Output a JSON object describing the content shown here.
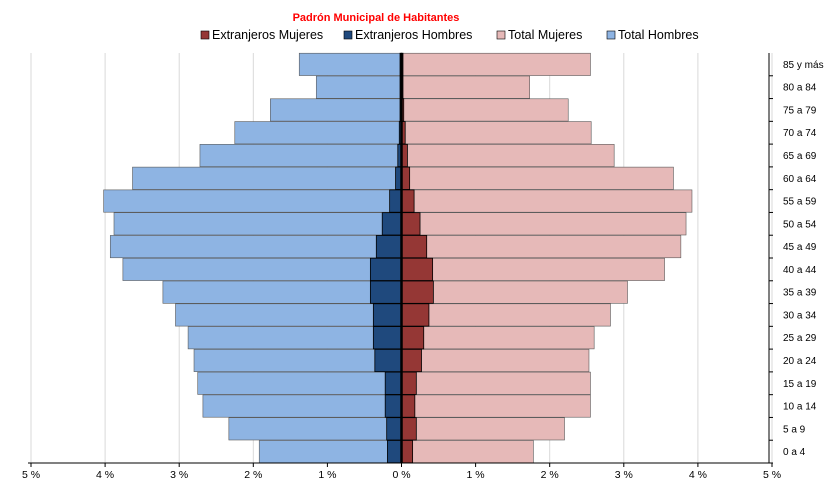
{
  "chart_data": {
    "type": "bar",
    "orientation": "horizontal",
    "title": "Padrón Municipal  de Habitantes",
    "legend_position": "top",
    "grid": true,
    "xlim": [
      -5,
      5
    ],
    "x_ticks": [
      "5 %",
      "4 %",
      "3 %",
      "2 %",
      "1 %",
      "0 %",
      "1 %",
      "2 %",
      "3 %",
      "4 %",
      "5 %"
    ],
    "categories": [
      "0 a 4",
      "5 a 9",
      "10 a 14",
      "15 a 19",
      "20 a 24",
      "25 a 29",
      "30 a 34",
      "35 a 39",
      "40 a 44",
      "45 a 49",
      "50 a 54",
      "55 a 59",
      "60 a 64",
      "65 a 69",
      "70 a 74",
      "75 a 79",
      "80 a 84",
      "85 y más"
    ],
    "series": [
      {
        "name": "Extranjeros Mujeres",
        "color": "#953735",
        "side": "right",
        "values": [
          0.15,
          0.2,
          0.18,
          0.2,
          0.27,
          0.3,
          0.37,
          0.43,
          0.42,
          0.34,
          0.25,
          0.17,
          0.11,
          0.08,
          0.05,
          0.03,
          0.02,
          0.02
        ]
      },
      {
        "name": "Extranjeros Hombres",
        "color": "#1f497d",
        "side": "left",
        "values": [
          0.19,
          0.2,
          0.22,
          0.22,
          0.36,
          0.38,
          0.38,
          0.42,
          0.42,
          0.34,
          0.26,
          0.16,
          0.08,
          0.05,
          0.03,
          0.02,
          0.02,
          0.02
        ]
      },
      {
        "name": "Total Mujeres",
        "color": "#e6b9b8",
        "side": "right",
        "values": [
          1.78,
          2.2,
          2.55,
          2.55,
          2.53,
          2.6,
          2.82,
          3.05,
          3.55,
          3.77,
          3.84,
          3.92,
          3.67,
          2.87,
          2.56,
          2.25,
          1.73,
          2.55
        ]
      },
      {
        "name": "Total Hombres",
        "color": "#8eb4e3",
        "side": "left",
        "values": [
          1.92,
          2.33,
          2.68,
          2.75,
          2.8,
          2.88,
          3.05,
          3.22,
          3.76,
          3.93,
          3.88,
          4.02,
          3.63,
          2.72,
          2.25,
          1.77,
          1.15,
          1.38
        ]
      }
    ]
  }
}
